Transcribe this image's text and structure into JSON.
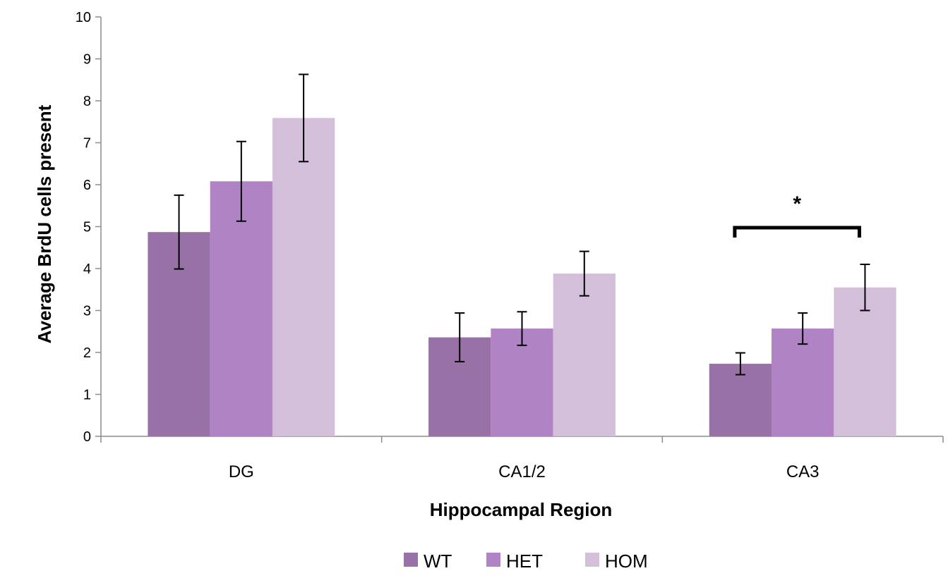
{
  "chart_data": {
    "type": "bar",
    "title": "",
    "xlabel": "Hippocampal Region",
    "ylabel": "Average BrdU cells present",
    "ylim": [
      0,
      10
    ],
    "yticks": [
      "0",
      "1",
      "2",
      "3",
      "4",
      "5",
      "6",
      "7",
      "8",
      "9",
      "10"
    ],
    "categories": [
      "DG",
      "CA1/2",
      "CA3"
    ],
    "series": [
      {
        "name": "WT",
        "color": "#9871a6",
        "values": [
          4.87,
          2.36,
          1.73
        ],
        "error": [
          0.88,
          0.58,
          0.26
        ]
      },
      {
        "name": "HET",
        "color": "#b084c4",
        "values": [
          6.08,
          2.57,
          2.57
        ],
        "error": [
          0.95,
          0.4,
          0.37
        ]
      },
      {
        "name": "HOM",
        "color": "#d4bfdb",
        "values": [
          7.59,
          3.88,
          3.55
        ],
        "error": [
          1.04,
          0.53,
          0.55
        ]
      }
    ],
    "legend": {
      "position": "bottom"
    },
    "grid": false,
    "annotations": [
      {
        "text": "*",
        "category": "CA3",
        "series_from": "WT",
        "series_to": "HOM"
      }
    ]
  }
}
